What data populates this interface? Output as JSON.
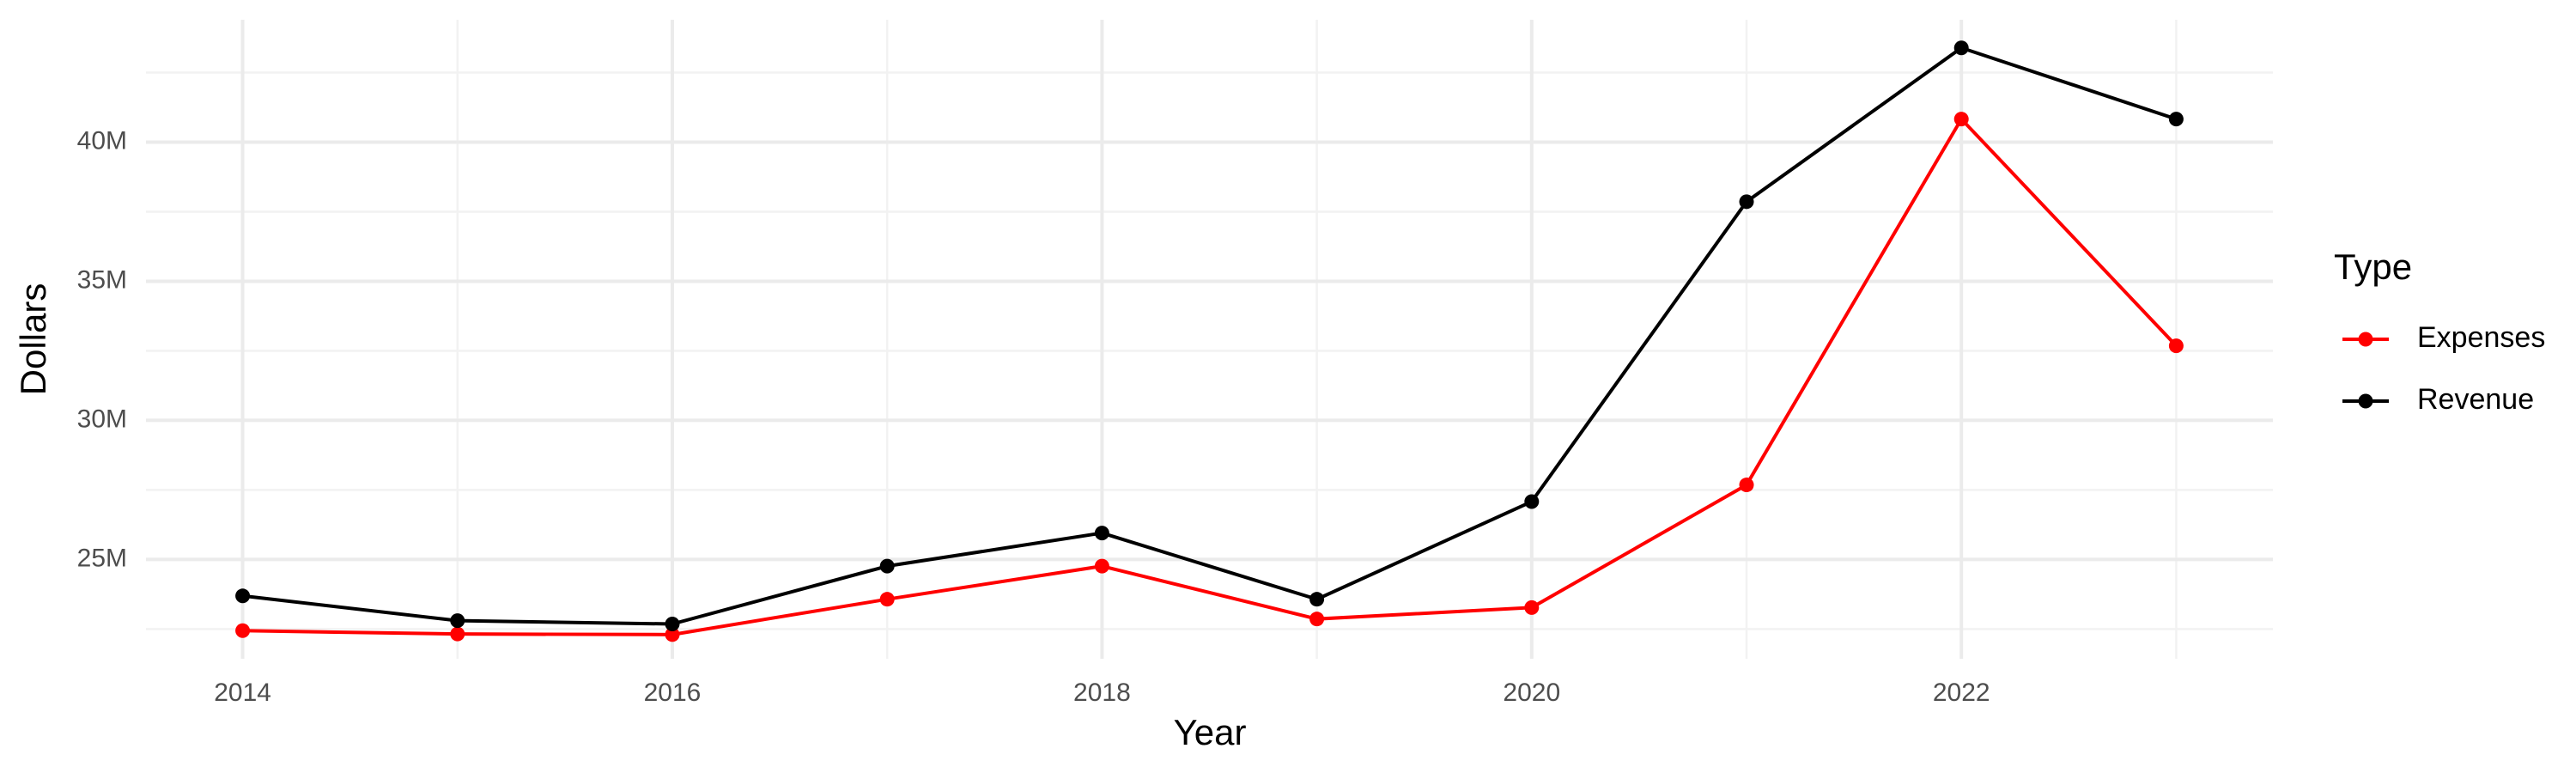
{
  "chart_data": {
    "type": "line",
    "x_label": "Year",
    "y_label": "Dollars",
    "legend_title": "Type",
    "x": [
      2014,
      2015,
      2016,
      2017,
      2018,
      2019,
      2020,
      2021,
      2022,
      2023
    ],
    "series": [
      {
        "name": "Expenses",
        "color": "#ff0000",
        "values": [
          22440000,
          22320000,
          22300000,
          23570000,
          24760000,
          22860000,
          23270000,
          27680000,
          40830000,
          32680000
        ]
      },
      {
        "name": "Revenue",
        "color": "#000000",
        "values": [
          23690000,
          22800000,
          22680000,
          24760000,
          25950000,
          23570000,
          27080000,
          37860000,
          43390000,
          40830000
        ]
      }
    ],
    "xlim": [
      2013.55,
      2023.45
    ],
    "xticks": [
      2014,
      2016,
      2018,
      2020,
      2022
    ],
    "ylim": [
      21430000,
      44400000
    ],
    "yticks": [
      {
        "value": 25000000,
        "label": "25M"
      },
      {
        "value": 30000000,
        "label": "30M"
      },
      {
        "value": 35000000,
        "label": "35M"
      },
      {
        "value": 40000000,
        "label": "40M"
      }
    ],
    "grid": true,
    "legend_position": "right"
  }
}
